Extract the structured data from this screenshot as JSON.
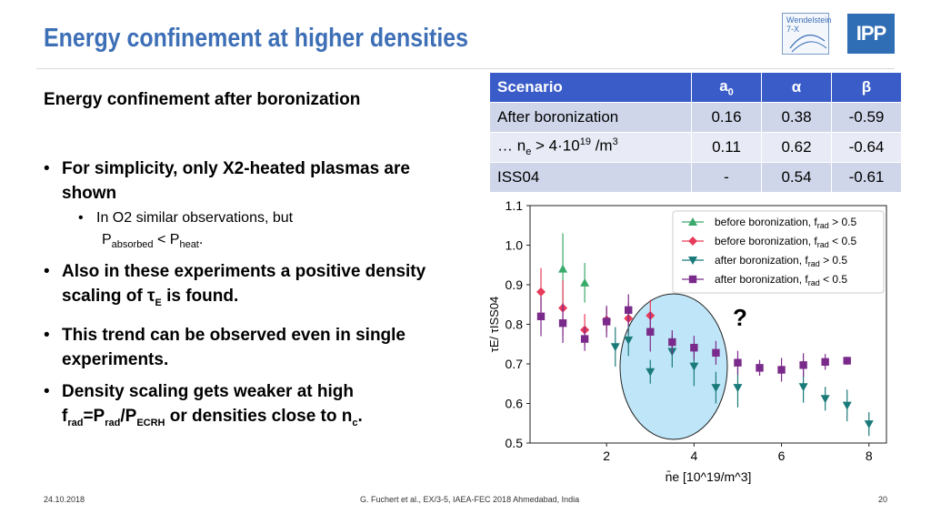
{
  "slide": {
    "title": "Energy confinement at higher densities",
    "logo_w7x_line1": "Wendelstein",
    "logo_w7x_line2": "7-X",
    "logo_ipp": "IPP",
    "subheading": "Energy confinement after boronization",
    "bullets": {
      "b1": "For simplicity, only X2-heated plasmas are shown",
      "b1_sub_line1": "In O2 similar observations, but",
      "b1_sub_p1": "P",
      "b1_sub_absorbed": "absorbed",
      "b1_sub_lt": " < P",
      "b1_sub_heat": "heat",
      "b1_sub_end": ".",
      "b2_text": "Also in these experiments a positive density scaling of τ",
      "b2_sub": "E",
      "b2_end": " is found.",
      "b3": "This trend can be observed even in single experiments.",
      "b4_text": "Density scaling gets weaker at high f",
      "b4_sub1": "rad",
      "b4_eq": "=P",
      "b4_sub2": "rad",
      "b4_slash": "/P",
      "b4_sub3": "ECRH",
      "b4_mid": " or densities close to n",
      "b4_sub4": "c",
      "b4_end": "."
    },
    "bullet_glyph": "•"
  },
  "table": {
    "headers": {
      "scenario": "Scenario",
      "a0_main": "a",
      "a0_sub": "0",
      "alpha": "α",
      "beta": "β"
    },
    "rows": [
      {
        "scenario": "After boronization",
        "a0": "0.16",
        "alpha": "0.38",
        "beta": "-0.59"
      },
      {
        "scenario_pre": "… n",
        "scenario_sub": "e",
        "scenario_mid": " > 4·10",
        "scenario_sup": "19",
        "scenario_post": " /m",
        "scenario_sup2": "3",
        "a0": "0.11",
        "alpha": "0.62",
        "beta": "-0.64"
      },
      {
        "scenario": "ISS04",
        "a0": "-",
        "alpha": "0.54",
        "beta": "-0.61"
      }
    ]
  },
  "chart_data": {
    "type": "scatter",
    "ylabel": "τE/ τISS04",
    "xlabel": "n̄e [10^19/m^3]",
    "xlim": [
      0.25,
      8.4
    ],
    "ylim": [
      0.5,
      1.1
    ],
    "xticks": [
      "2",
      "4",
      "6",
      "8"
    ],
    "yticks": [
      "0.5",
      "0.6",
      "0.7",
      "0.8",
      "0.9",
      "1.0",
      "1.1"
    ],
    "annotation": "?",
    "legend_position": "top-right",
    "series": [
      {
        "name": "before boronization, frad > 0.5",
        "color": "#3aaa6a",
        "marker": "triangle-up",
        "points": [
          [
            1.0,
            0.94,
            0.09
          ],
          [
            1.5,
            0.905,
            0.05
          ]
        ]
      },
      {
        "name": "before boronization, frad < 0.5",
        "color": "#e83a5a",
        "marker": "diamond",
        "points": [
          [
            0.5,
            0.882,
            0.06
          ],
          [
            1.0,
            0.841,
            0.07
          ],
          [
            1.5,
            0.786,
            0.04
          ],
          [
            2.0,
            0.811,
            0.03
          ],
          [
            2.5,
            0.815,
            0.04
          ],
          [
            3.0,
            0.822,
            0.04
          ]
        ]
      },
      {
        "name": "after boronization, frad > 0.5",
        "color": "#1a7a7a",
        "marker": "triangle-down",
        "points": [
          [
            2.2,
            0.743,
            0.05
          ],
          [
            2.5,
            0.76,
            0.04
          ],
          [
            3.0,
            0.68,
            0.03
          ],
          [
            3.5,
            0.731,
            0.04
          ],
          [
            4.0,
            0.694,
            0.05
          ],
          [
            4.5,
            0.64,
            0.04
          ],
          [
            5.0,
            0.64,
            0.05
          ],
          [
            6.5,
            0.642,
            0.04
          ],
          [
            7.0,
            0.612,
            0.03
          ],
          [
            7.5,
            0.595,
            0.04
          ],
          [
            8.0,
            0.548,
            0.03
          ]
        ]
      },
      {
        "name": "after boronization, frad < 0.5",
        "color": "#7a2a8a",
        "marker": "square",
        "points": [
          [
            0.5,
            0.82,
            0.05
          ],
          [
            1.0,
            0.803,
            0.05
          ],
          [
            1.5,
            0.763,
            0.03
          ],
          [
            2.0,
            0.807,
            0.04
          ],
          [
            2.5,
            0.836,
            0.04
          ],
          [
            3.0,
            0.781,
            0.05
          ],
          [
            3.5,
            0.755,
            0.03
          ],
          [
            4.0,
            0.741,
            0.03
          ],
          [
            4.5,
            0.728,
            0.03
          ],
          [
            5.0,
            0.703,
            0.03
          ],
          [
            5.5,
            0.69,
            0.02
          ],
          [
            6.0,
            0.685,
            0.03
          ],
          [
            6.5,
            0.697,
            0.03
          ],
          [
            7.0,
            0.705,
            0.02
          ],
          [
            7.5,
            0.708,
            0.01
          ]
        ]
      }
    ],
    "legend_labels": [
      {
        "text": "before boronization,  f",
        "sub": "rad",
        "rel": " > 0.5"
      },
      {
        "text": "before boronization,  f",
        "sub": "rad",
        "rel": " < 0.5"
      },
      {
        "text": "after boronization,  f",
        "sub": "rad",
        "rel": " > 0.5"
      },
      {
        "text": "after boronization,  f",
        "sub": "rad",
        "rel": " < 0.5"
      }
    ]
  },
  "footer": {
    "date": "24.10.2018",
    "citation": "G. Fuchert et al., EX/3-5, IAEA-FEC 2018 Ahmedabad, India",
    "page": "20"
  }
}
